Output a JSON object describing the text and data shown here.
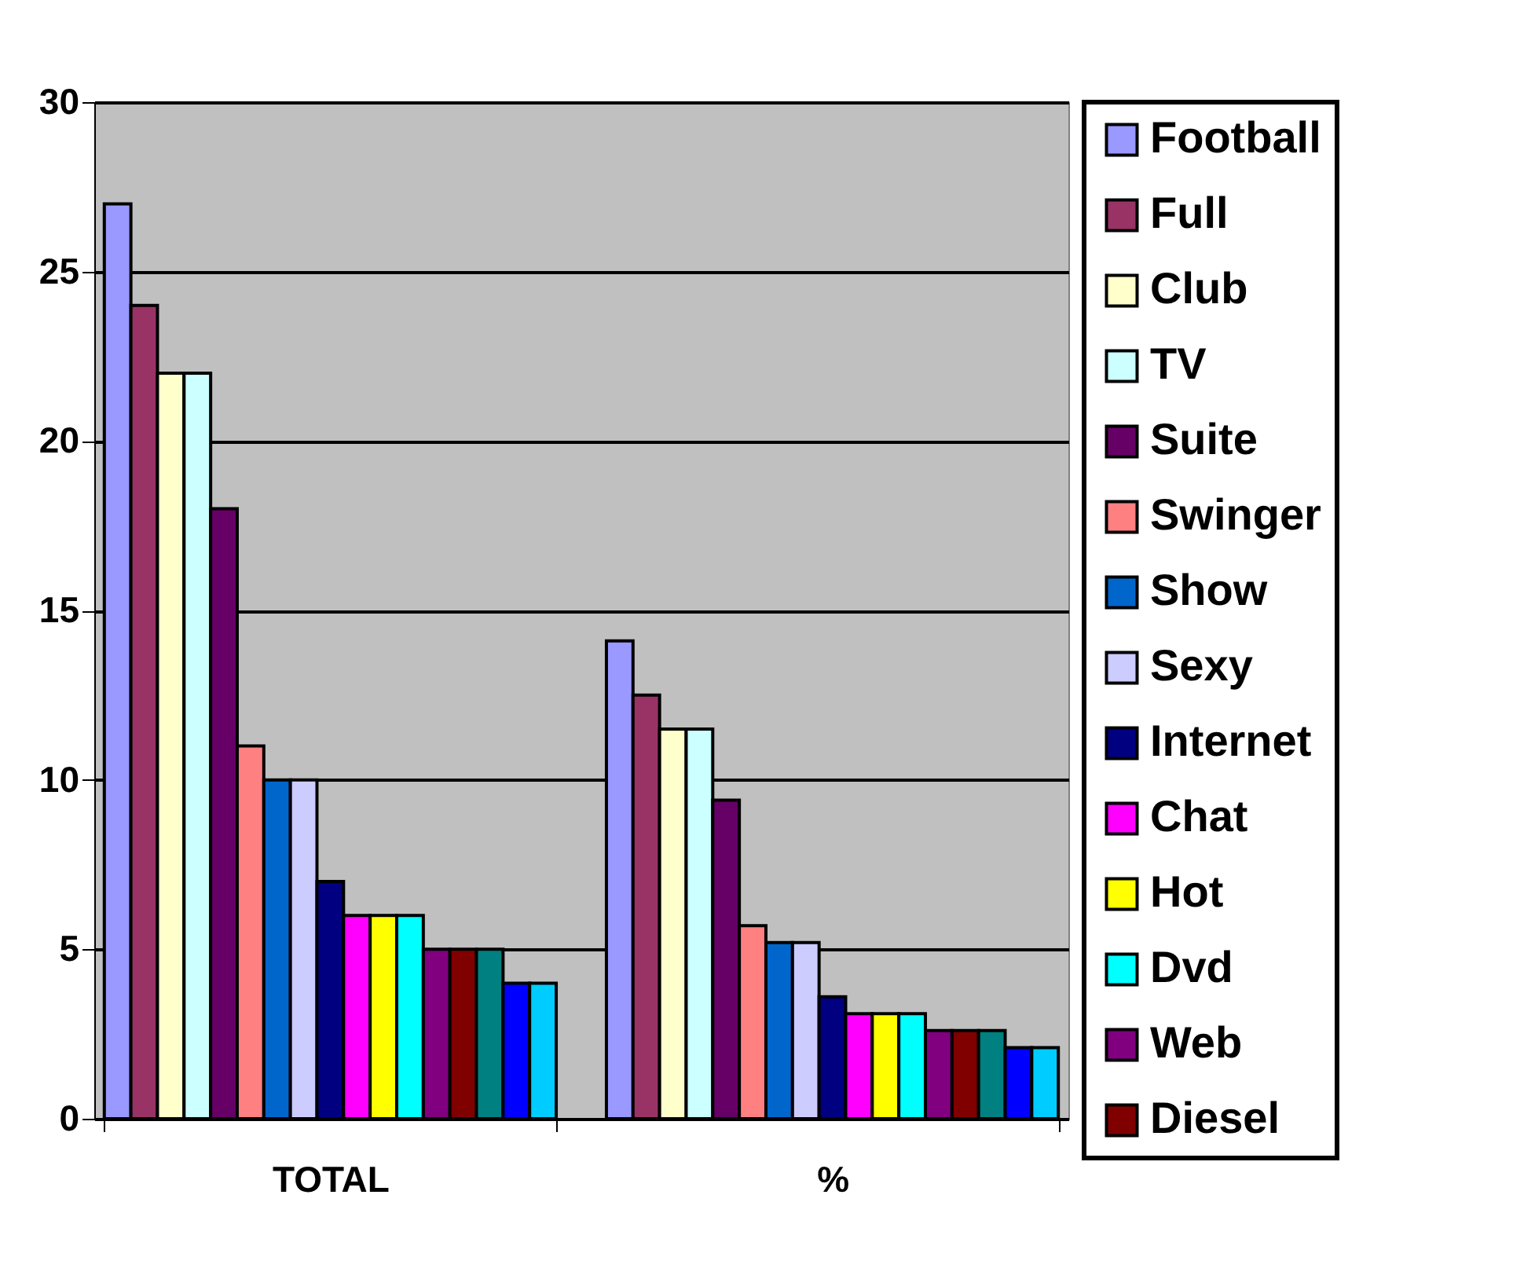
{
  "chart_data": {
    "type": "bar",
    "categories": [
      "TOTAL",
      "%"
    ],
    "series": [
      {
        "name": "Football",
        "color": "#9999ff",
        "values": [
          27,
          14.1
        ]
      },
      {
        "name": "Full",
        "color": "#993366",
        "values": [
          24,
          12.5
        ]
      },
      {
        "name": "Club",
        "color": "#ffffcc",
        "values": [
          22,
          11.5
        ]
      },
      {
        "name": "TV",
        "color": "#ccffff",
        "values": [
          22,
          11.5
        ]
      },
      {
        "name": "Suite",
        "color": "#660066",
        "values": [
          18,
          9.4
        ]
      },
      {
        "name": "Swinger",
        "color": "#ff8080",
        "values": [
          11,
          5.7
        ]
      },
      {
        "name": "Show",
        "color": "#0066cc",
        "values": [
          10,
          5.2
        ]
      },
      {
        "name": "Sexy",
        "color": "#ccccff",
        "values": [
          10,
          5.2
        ]
      },
      {
        "name": "Internet",
        "color": "#000080",
        "values": [
          7,
          3.6
        ]
      },
      {
        "name": "Chat",
        "color": "#ff00ff",
        "values": [
          6,
          3.1
        ]
      },
      {
        "name": "Hot",
        "color": "#ffff00",
        "values": [
          6,
          3.1
        ]
      },
      {
        "name": "Dvd",
        "color": "#00ffff",
        "values": [
          6,
          3.1
        ]
      },
      {
        "name": "Web",
        "color": "#800080",
        "values": [
          5,
          2.6
        ]
      },
      {
        "name": "Diesel",
        "color": "#800000",
        "values": [
          5,
          2.6
        ]
      },
      {
        "color": "#008080",
        "values": [
          5,
          2.6
        ]
      },
      {
        "color": "#0000ff",
        "values": [
          4,
          2.1
        ]
      },
      {
        "color": "#00ccff",
        "values": [
          4,
          2.1
        ]
      }
    ],
    "ylim": [
      0,
      30
    ],
    "yticks": [
      0,
      5,
      10,
      15,
      20,
      25,
      30
    ],
    "grid": "y",
    "legend": "right"
  }
}
